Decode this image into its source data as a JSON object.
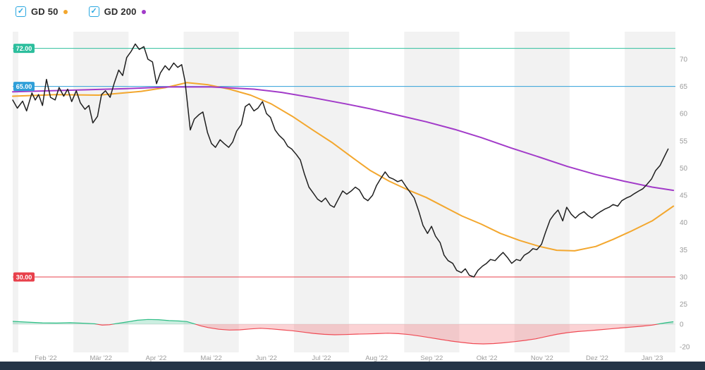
{
  "legend": {
    "check_glyph": "✓",
    "checkbox_color": "#2aa7e0",
    "items": [
      {
        "label": "GD 50",
        "checked": true,
        "dot_color": "#f3a72e"
      },
      {
        "label": "GD 200",
        "checked": true,
        "dot_color": "#a23bc9"
      }
    ]
  },
  "colors": {
    "band": "#f2f2f2",
    "axis_text": "#9b9b9b",
    "bottom_bar": "#243447",
    "baseline": "#e3e3e3",
    "background": "#ffffff"
  },
  "chart_data": {
    "type": "line",
    "title": "",
    "xlabel": "",
    "ylabel": "",
    "grid": false,
    "legend_position": "top-left",
    "price_range": [
      24,
      74
    ],
    "oscillator_range": [
      -22,
      6
    ],
    "x_labels": [
      "Feb '22",
      "Mär '22",
      "Apr '22",
      "Mai '22",
      "Jun '22",
      "Jul '22",
      "Aug '22",
      "Sep '22",
      "Okt '22",
      "Nov '22",
      "Dez '22",
      "Jan '23"
    ],
    "price_axis": {
      "ticks": [
        70,
        65,
        60,
        55,
        50,
        45,
        40,
        35,
        30,
        25
      ]
    },
    "oscillator_axis": {
      "ticks": [
        0,
        -20
      ]
    },
    "levels": [
      {
        "label": "72.00",
        "value": 72,
        "color": "#2dbe9d"
      },
      {
        "label": "65.00",
        "value": 65,
        "color": "#2f9fd8"
      },
      {
        "label": "30.00",
        "value": 30,
        "color": "#e8404b"
      }
    ],
    "series": [
      {
        "name": "GD 50",
        "slug": "gd50",
        "color": "#f3a72e",
        "width": 2,
        "points": [
          [
            0,
            63.2
          ],
          [
            0.066,
            63.5
          ],
          [
            0.13,
            63.4
          ],
          [
            0.194,
            64.1
          ],
          [
            0.231,
            64.8
          ],
          [
            0.263,
            65.7
          ],
          [
            0.295,
            65.3
          ],
          [
            0.327,
            64.5
          ],
          [
            0.359,
            63.4
          ],
          [
            0.39,
            61.8
          ],
          [
            0.422,
            59.5
          ],
          [
            0.454,
            56.9
          ],
          [
            0.483,
            54.6
          ],
          [
            0.513,
            51.9
          ],
          [
            0.539,
            49.6
          ],
          [
            0.568,
            47.6
          ],
          [
            0.598,
            45.9
          ],
          [
            0.624,
            44.6
          ],
          [
            0.651,
            42.9
          ],
          [
            0.678,
            41.2
          ],
          [
            0.707,
            39.7
          ],
          [
            0.736,
            38
          ],
          [
            0.765,
            36.7
          ],
          [
            0.795,
            35.6
          ],
          [
            0.821,
            34.9
          ],
          [
            0.848,
            34.8
          ],
          [
            0.88,
            35.6
          ],
          [
            0.906,
            36.9
          ],
          [
            0.933,
            38.4
          ],
          [
            0.965,
            40.3
          ],
          [
            0.997,
            43
          ]
        ]
      },
      {
        "name": "GD 200",
        "slug": "gd200",
        "color": "#a23bc9",
        "width": 2,
        "points": [
          [
            0,
            64
          ],
          [
            0.087,
            64.3
          ],
          [
            0.172,
            64.6
          ],
          [
            0.236,
            64.9
          ],
          [
            0.3,
            64.9
          ],
          [
            0.364,
            64.5
          ],
          [
            0.406,
            63.9
          ],
          [
            0.454,
            62.9
          ],
          [
            0.502,
            61.8
          ],
          [
            0.539,
            60.9
          ],
          [
            0.582,
            59.7
          ],
          [
            0.624,
            58.5
          ],
          [
            0.667,
            57.1
          ],
          [
            0.707,
            55.6
          ],
          [
            0.752,
            53.7
          ],
          [
            0.795,
            52
          ],
          [
            0.837,
            50.3
          ],
          [
            0.88,
            48.8
          ],
          [
            0.922,
            47.6
          ],
          [
            0.965,
            46.5
          ],
          [
            0.997,
            45.9
          ]
        ]
      },
      {
        "name": "price",
        "slug": "price",
        "color": "#1f1f1f",
        "width": 1.5,
        "points": [
          [
            0,
            62.5
          ],
          [
            0.007,
            61
          ],
          [
            0.015,
            62.3
          ],
          [
            0.021,
            60.5
          ],
          [
            0.029,
            63.8
          ],
          [
            0.034,
            62.5
          ],
          [
            0.039,
            63.5
          ],
          [
            0.045,
            61.5
          ],
          [
            0.051,
            66.3
          ],
          [
            0.057,
            63
          ],
          [
            0.064,
            62.5
          ],
          [
            0.07,
            64.8
          ],
          [
            0.077,
            63.2
          ],
          [
            0.083,
            64.5
          ],
          [
            0.089,
            62.2
          ],
          [
            0.096,
            64.2
          ],
          [
            0.102,
            62
          ],
          [
            0.109,
            60.8
          ],
          [
            0.115,
            61.5
          ],
          [
            0.121,
            58.3
          ],
          [
            0.128,
            59.5
          ],
          [
            0.134,
            63.5
          ],
          [
            0.14,
            64.2
          ],
          [
            0.147,
            63
          ],
          [
            0.153,
            65.5
          ],
          [
            0.16,
            68
          ],
          [
            0.166,
            67
          ],
          [
            0.172,
            70.3
          ],
          [
            0.179,
            71.5
          ],
          [
            0.185,
            72.8
          ],
          [
            0.191,
            71.8
          ],
          [
            0.198,
            72.3
          ],
          [
            0.204,
            70
          ],
          [
            0.211,
            69.5
          ],
          [
            0.217,
            65.5
          ],
          [
            0.223,
            67.5
          ],
          [
            0.23,
            68.8
          ],
          [
            0.236,
            68
          ],
          [
            0.243,
            69.3
          ],
          [
            0.249,
            68.5
          ],
          [
            0.255,
            69
          ],
          [
            0.26,
            66
          ],
          [
            0.264,
            61.5
          ],
          [
            0.268,
            57
          ],
          [
            0.274,
            59
          ],
          [
            0.281,
            59.8
          ],
          [
            0.287,
            60.3
          ],
          [
            0.294,
            56.5
          ],
          [
            0.3,
            54.5
          ],
          [
            0.306,
            53.8
          ],
          [
            0.313,
            55.2
          ],
          [
            0.319,
            54.5
          ],
          [
            0.326,
            53.8
          ],
          [
            0.332,
            54.8
          ],
          [
            0.338,
            56.8
          ],
          [
            0.345,
            58
          ],
          [
            0.351,
            61.3
          ],
          [
            0.357,
            61.8
          ],
          [
            0.364,
            60.5
          ],
          [
            0.37,
            61
          ],
          [
            0.377,
            62.2
          ],
          [
            0.383,
            60
          ],
          [
            0.389,
            59.3
          ],
          [
            0.396,
            57
          ],
          [
            0.402,
            56
          ],
          [
            0.409,
            55.2
          ],
          [
            0.415,
            54
          ],
          [
            0.421,
            53.5
          ],
          [
            0.428,
            52.5
          ],
          [
            0.434,
            51.5
          ],
          [
            0.44,
            49
          ],
          [
            0.447,
            46.5
          ],
          [
            0.453,
            45.5
          ],
          [
            0.46,
            44.3
          ],
          [
            0.466,
            43.8
          ],
          [
            0.472,
            44.5
          ],
          [
            0.479,
            43.2
          ],
          [
            0.485,
            42.8
          ],
          [
            0.491,
            44.2
          ],
          [
            0.498,
            45.8
          ],
          [
            0.504,
            45.2
          ],
          [
            0.511,
            45.8
          ],
          [
            0.517,
            46.5
          ],
          [
            0.523,
            46
          ],
          [
            0.53,
            44.5
          ],
          [
            0.536,
            44
          ],
          [
            0.543,
            45
          ],
          [
            0.549,
            46.8
          ],
          [
            0.555,
            48
          ],
          [
            0.562,
            49.3
          ],
          [
            0.568,
            48.3
          ],
          [
            0.574,
            48
          ],
          [
            0.581,
            47.5
          ],
          [
            0.587,
            47.8
          ],
          [
            0.594,
            46.5
          ],
          [
            0.6,
            45.5
          ],
          [
            0.606,
            44.5
          ],
          [
            0.613,
            42
          ],
          [
            0.619,
            39.5
          ],
          [
            0.626,
            38
          ],
          [
            0.632,
            39.3
          ],
          [
            0.638,
            37.5
          ],
          [
            0.645,
            36.3
          ],
          [
            0.651,
            34
          ],
          [
            0.657,
            33
          ],
          [
            0.664,
            32.5
          ],
          [
            0.67,
            31.2
          ],
          [
            0.677,
            30.8
          ],
          [
            0.683,
            31.5
          ],
          [
            0.689,
            30.3
          ],
          [
            0.696,
            30
          ],
          [
            0.702,
            31.2
          ],
          [
            0.709,
            32
          ],
          [
            0.715,
            32.5
          ],
          [
            0.721,
            33.2
          ],
          [
            0.728,
            33
          ],
          [
            0.734,
            33.8
          ],
          [
            0.74,
            34.5
          ],
          [
            0.747,
            33.5
          ],
          [
            0.753,
            32.5
          ],
          [
            0.76,
            33.2
          ],
          [
            0.766,
            33
          ],
          [
            0.772,
            34
          ],
          [
            0.779,
            34.5
          ],
          [
            0.785,
            35.2
          ],
          [
            0.791,
            35
          ],
          [
            0.798,
            36
          ],
          [
            0.804,
            38.2
          ],
          [
            0.811,
            40.5
          ],
          [
            0.817,
            41.5
          ],
          [
            0.823,
            42.3
          ],
          [
            0.83,
            40.3
          ],
          [
            0.836,
            42.8
          ],
          [
            0.843,
            41.5
          ],
          [
            0.849,
            40.8
          ],
          [
            0.855,
            41.5
          ],
          [
            0.862,
            42
          ],
          [
            0.868,
            41.3
          ],
          [
            0.874,
            40.8
          ],
          [
            0.881,
            41.5
          ],
          [
            0.887,
            42
          ],
          [
            0.894,
            42.5
          ],
          [
            0.9,
            42.8
          ],
          [
            0.906,
            43.3
          ],
          [
            0.913,
            43
          ],
          [
            0.919,
            44
          ],
          [
            0.926,
            44.5
          ],
          [
            0.932,
            44.8
          ],
          [
            0.938,
            45.3
          ],
          [
            0.945,
            45.8
          ],
          [
            0.951,
            46.2
          ],
          [
            0.957,
            47
          ],
          [
            0.964,
            48
          ],
          [
            0.97,
            49.5
          ],
          [
            0.977,
            50.5
          ],
          [
            0.983,
            52
          ],
          [
            0.989,
            53.5
          ]
        ]
      }
    ],
    "oscillator": {
      "positive_color": "#2ebd85",
      "positive_fill": "rgba(46,189,133,0.25)",
      "negative_color": "#ef4b55",
      "negative_fill": "rgba(239,75,85,0.25)",
      "points": [
        [
          0,
          2.5
        ],
        [
          0.023,
          1.8
        ],
        [
          0.045,
          1.2
        ],
        [
          0.066,
          1
        ],
        [
          0.087,
          1.3
        ],
        [
          0.109,
          0.8
        ],
        [
          0.124,
          0.3
        ],
        [
          0.135,
          -0.8
        ],
        [
          0.146,
          -0.5
        ],
        [
          0.156,
          0.5
        ],
        [
          0.167,
          1.5
        ],
        [
          0.178,
          2.5
        ],
        [
          0.188,
          3.5
        ],
        [
          0.204,
          4.2
        ],
        [
          0.22,
          4
        ],
        [
          0.236,
          3.2
        ],
        [
          0.252,
          2.8
        ],
        [
          0.263,
          2.3
        ],
        [
          0.273,
          0.5
        ],
        [
          0.284,
          -1.5
        ],
        [
          0.295,
          -3
        ],
        [
          0.311,
          -4.5
        ],
        [
          0.327,
          -5.2
        ],
        [
          0.343,
          -5
        ],
        [
          0.359,
          -4.2
        ],
        [
          0.374,
          -3.6
        ],
        [
          0.39,
          -4.2
        ],
        [
          0.406,
          -5
        ],
        [
          0.422,
          -5.8
        ],
        [
          0.438,
          -7
        ],
        [
          0.454,
          -8.2
        ],
        [
          0.47,
          -9
        ],
        [
          0.486,
          -9.4
        ],
        [
          0.502,
          -9.2
        ],
        [
          0.518,
          -8.8
        ],
        [
          0.534,
          -8.6
        ],
        [
          0.55,
          -8.4
        ],
        [
          0.566,
          -8
        ],
        [
          0.582,
          -8.4
        ],
        [
          0.598,
          -9.2
        ],
        [
          0.614,
          -10.5
        ],
        [
          0.63,
          -12
        ],
        [
          0.646,
          -13.5
        ],
        [
          0.662,
          -15
        ],
        [
          0.678,
          -16.2
        ],
        [
          0.694,
          -17.2
        ],
        [
          0.71,
          -17.5
        ],
        [
          0.726,
          -17.2
        ],
        [
          0.741,
          -16.5
        ],
        [
          0.757,
          -15.5
        ],
        [
          0.773,
          -14.4
        ],
        [
          0.789,
          -13
        ],
        [
          0.805,
          -11
        ],
        [
          0.821,
          -9
        ],
        [
          0.837,
          -7.5
        ],
        [
          0.853,
          -6.5
        ],
        [
          0.869,
          -5.8
        ],
        [
          0.885,
          -5
        ],
        [
          0.901,
          -4.2
        ],
        [
          0.917,
          -3.4
        ],
        [
          0.933,
          -2.6
        ],
        [
          0.949,
          -1.8
        ],
        [
          0.965,
          -0.8
        ],
        [
          0.976,
          0.3
        ],
        [
          0.986,
          1.3
        ],
        [
          0.997,
          2.2
        ]
      ]
    }
  }
}
